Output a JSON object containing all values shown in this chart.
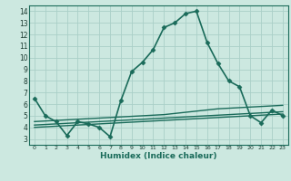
{
  "xlabel": "Humidex (Indice chaleur)",
  "background_color": "#cce8e0",
  "grid_color": "#aacfc8",
  "line_color": "#1a6b5a",
  "x_ticks": [
    0,
    1,
    2,
    3,
    4,
    5,
    6,
    7,
    8,
    9,
    10,
    11,
    12,
    13,
    14,
    15,
    16,
    17,
    18,
    19,
    20,
    21,
    22,
    23
  ],
  "y_ticks": [
    3,
    4,
    5,
    6,
    7,
    8,
    9,
    10,
    11,
    12,
    13,
    14
  ],
  "ylim": [
    2.5,
    14.5
  ],
  "xlim": [
    -0.5,
    23.5
  ],
  "series": [
    {
      "x": [
        0,
        1,
        2,
        3,
        4,
        5,
        6,
        7,
        8,
        9,
        10,
        11,
        12,
        13,
        14,
        15,
        16,
        17,
        18,
        19,
        20,
        21,
        22,
        23
      ],
      "y": [
        6.5,
        5.0,
        4.5,
        3.3,
        4.5,
        4.3,
        4.0,
        3.2,
        6.3,
        8.8,
        9.6,
        10.7,
        12.6,
        13.0,
        13.8,
        14.0,
        11.3,
        9.5,
        8.0,
        7.5,
        5.0,
        4.4,
        5.5,
        5.0
      ],
      "marker": "D",
      "markersize": 2.5,
      "linewidth": 1.2
    },
    {
      "x": [
        0,
        1,
        2,
        3,
        4,
        5,
        6,
        7,
        8,
        9,
        10,
        11,
        12,
        13,
        14,
        15,
        16,
        17,
        18,
        19,
        20,
        21,
        22,
        23
      ],
      "y": [
        4.5,
        4.55,
        4.6,
        4.65,
        4.7,
        4.75,
        4.8,
        4.85,
        4.9,
        4.95,
        5.0,
        5.05,
        5.1,
        5.2,
        5.3,
        5.4,
        5.5,
        5.6,
        5.65,
        5.7,
        5.75,
        5.8,
        5.85,
        5.9
      ],
      "marker": null,
      "markersize": 0,
      "linewidth": 1.0
    },
    {
      "x": [
        0,
        1,
        2,
        3,
        4,
        5,
        6,
        7,
        8,
        9,
        10,
        11,
        12,
        13,
        14,
        15,
        16,
        17,
        18,
        19,
        20,
        21,
        22,
        23
      ],
      "y": [
        4.2,
        4.25,
        4.3,
        4.35,
        4.4,
        4.45,
        4.5,
        4.55,
        4.6,
        4.65,
        4.7,
        4.75,
        4.8,
        4.85,
        4.9,
        4.95,
        5.0,
        5.05,
        5.1,
        5.15,
        5.2,
        5.25,
        5.3,
        5.35
      ],
      "marker": null,
      "markersize": 0,
      "linewidth": 1.0
    },
    {
      "x": [
        0,
        1,
        2,
        3,
        4,
        5,
        6,
        7,
        8,
        9,
        10,
        11,
        12,
        13,
        14,
        15,
        16,
        17,
        18,
        19,
        20,
        21,
        22,
        23
      ],
      "y": [
        4.0,
        4.05,
        4.1,
        4.15,
        4.2,
        4.25,
        4.3,
        4.35,
        4.4,
        4.45,
        4.5,
        4.55,
        4.6,
        4.65,
        4.7,
        4.75,
        4.8,
        4.85,
        4.9,
        4.95,
        5.0,
        5.05,
        5.1,
        5.15
      ],
      "marker": null,
      "markersize": 0,
      "linewidth": 1.0
    }
  ]
}
